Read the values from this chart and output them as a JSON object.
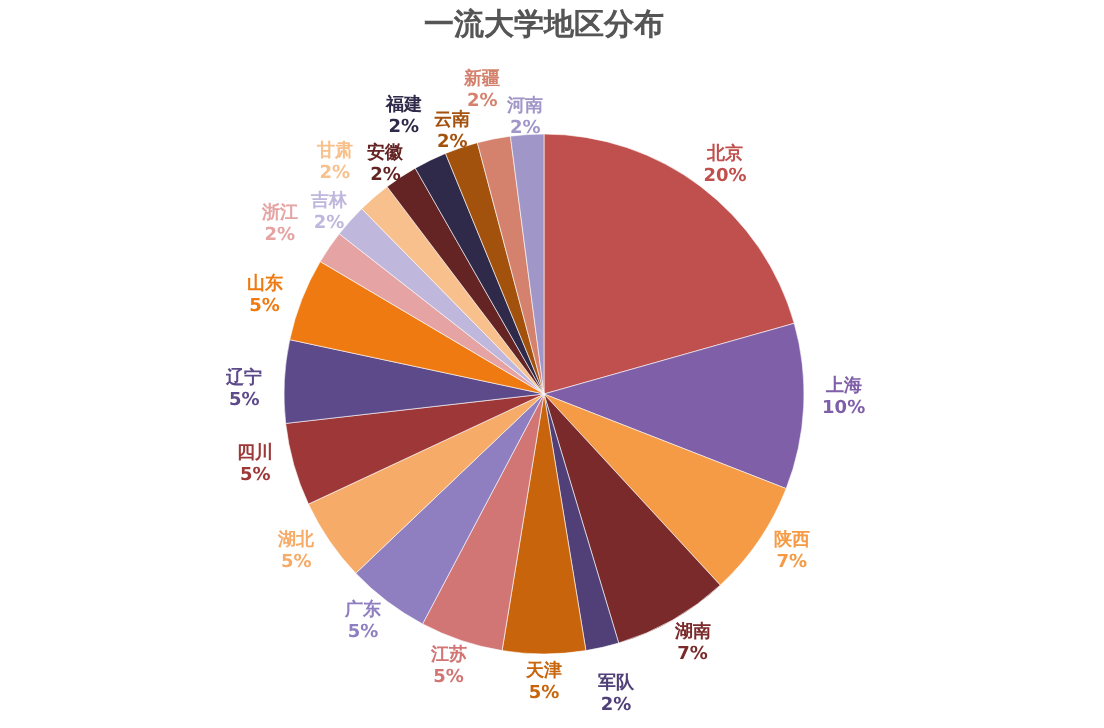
{
  "chart_data": {
    "type": "pie",
    "title": "一流大学地区分布",
    "categories": [
      "北京",
      "上海",
      "陕西",
      "湖南",
      "军队",
      "天津",
      "江苏",
      "广东",
      "湖北",
      "四川",
      "辽宁",
      "山东",
      "浙江",
      "吉林",
      "甘肃",
      "安徽",
      "福建",
      "云南",
      "新疆",
      "河南"
    ],
    "values": [
      20,
      10,
      7,
      7,
      2,
      5,
      5,
      5,
      5,
      5,
      5,
      5,
      2,
      2,
      2,
      2,
      2,
      2,
      2,
      2
    ],
    "value_labels": [
      "20%",
      "10%",
      "7%",
      "7%",
      "2%",
      "5%",
      "5%",
      "5%",
      "5%",
      "5%",
      "5%",
      "5%",
      "2%",
      "2%",
      "2%",
      "2%",
      "2%",
      "2%",
      "2%",
      "2%"
    ],
    "colors": [
      "#c0504d",
      "#7f5fa8",
      "#f59a45",
      "#7a2a2a",
      "#514078",
      "#c8650c",
      "#d27575",
      "#8f7fc0",
      "#f7ab68",
      "#9e3838",
      "#5d4a8a",
      "#ef7a12",
      "#e6a3a3",
      "#c0b8dc",
      "#f8c08c",
      "#652424",
      "#2f2a4a",
      "#a3520e",
      "#d4826e",
      "#a096c8"
    ]
  }
}
